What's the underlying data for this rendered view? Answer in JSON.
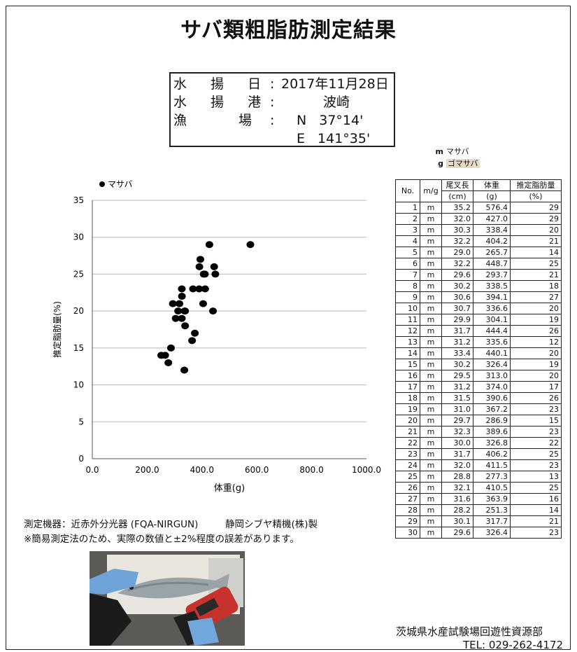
{
  "title": "サバ類粗脂肪測定結果",
  "info": {
    "rows": [
      {
        "label": "水 揚 日",
        "value": "2017年11月28日"
      },
      {
        "label": "水 揚 港",
        "value": "波崎"
      },
      {
        "label": "漁 場",
        "value": "N 37°14'"
      },
      {
        "label": "",
        "value": "E 141°35'"
      }
    ],
    "colon": ":"
  },
  "species_legend": [
    {
      "code": "m",
      "name": "マサバ"
    },
    {
      "code": "g",
      "name": "ゴマサバ"
    }
  ],
  "table": {
    "headers": [
      "No.",
      "m/g",
      "尾叉長",
      "体重",
      "推定脂肪量"
    ],
    "units": [
      "(cm)",
      "(g)",
      "(%)"
    ],
    "rows": [
      [
        "1",
        "m",
        "35.2",
        "576.4",
        "29"
      ],
      [
        "2",
        "m",
        "32.0",
        "427.0",
        "29"
      ],
      [
        "3",
        "m",
        "30.3",
        "338.4",
        "20"
      ],
      [
        "4",
        "m",
        "32.2",
        "404.2",
        "21"
      ],
      [
        "5",
        "m",
        "29.0",
        "265.7",
        "14"
      ],
      [
        "6",
        "m",
        "32.2",
        "448.7",
        "25"
      ],
      [
        "7",
        "m",
        "29.6",
        "293.7",
        "21"
      ],
      [
        "8",
        "m",
        "30.2",
        "338.5",
        "18"
      ],
      [
        "9",
        "m",
        "30.6",
        "394.1",
        "27"
      ],
      [
        "10",
        "m",
        "30.7",
        "336.6",
        "20"
      ],
      [
        "11",
        "m",
        "29.9",
        "304.1",
        "19"
      ],
      [
        "12",
        "m",
        "31.7",
        "444.4",
        "26"
      ],
      [
        "13",
        "m",
        "31.2",
        "335.6",
        "12"
      ],
      [
        "14",
        "m",
        "33.4",
        "440.1",
        "20"
      ],
      [
        "15",
        "m",
        "30.2",
        "326.4",
        "19"
      ],
      [
        "16",
        "m",
        "29.5",
        "313.0",
        "20"
      ],
      [
        "17",
        "m",
        "31.2",
        "374.0",
        "17"
      ],
      [
        "18",
        "m",
        "31.5",
        "390.6",
        "26"
      ],
      [
        "19",
        "m",
        "31.0",
        "367.2",
        "23"
      ],
      [
        "20",
        "m",
        "29.7",
        "286.9",
        "15"
      ],
      [
        "21",
        "m",
        "32.3",
        "389.6",
        "23"
      ],
      [
        "22",
        "m",
        "30.0",
        "326.8",
        "22"
      ],
      [
        "23",
        "m",
        "31.7",
        "406.2",
        "25"
      ],
      [
        "24",
        "m",
        "32.0",
        "411.5",
        "23"
      ],
      [
        "25",
        "m",
        "28.8",
        "277.3",
        "13"
      ],
      [
        "26",
        "m",
        "32.1",
        "410.5",
        "25"
      ],
      [
        "27",
        "m",
        "31.6",
        "363.9",
        "16"
      ],
      [
        "28",
        "m",
        "28.2",
        "251.3",
        "14"
      ],
      [
        "29",
        "m",
        "30.1",
        "317.7",
        "21"
      ],
      [
        "30",
        "m",
        "29.6",
        "326.4",
        "23"
      ]
    ]
  },
  "chart_data": {
    "type": "scatter",
    "series": [
      {
        "name": "マサバ",
        "points": [
          [
            576.4,
            29
          ],
          [
            427.0,
            29
          ],
          [
            338.4,
            20
          ],
          [
            404.2,
            21
          ],
          [
            265.7,
            14
          ],
          [
            448.7,
            25
          ],
          [
            293.7,
            21
          ],
          [
            338.5,
            18
          ],
          [
            394.1,
            27
          ],
          [
            336.6,
            20
          ],
          [
            304.1,
            19
          ],
          [
            444.4,
            26
          ],
          [
            335.6,
            12
          ],
          [
            440.1,
            20
          ],
          [
            326.4,
            19
          ],
          [
            313.0,
            20
          ],
          [
            374.0,
            17
          ],
          [
            390.6,
            26
          ],
          [
            367.2,
            23
          ],
          [
            286.9,
            15
          ],
          [
            389.6,
            23
          ],
          [
            326.8,
            22
          ],
          [
            406.2,
            25
          ],
          [
            411.5,
            23
          ],
          [
            277.3,
            13
          ],
          [
            410.5,
            25
          ],
          [
            363.9,
            16
          ],
          [
            251.3,
            14
          ],
          [
            317.7,
            21
          ],
          [
            326.4,
            23
          ]
        ]
      }
    ],
    "xlabel": "体重(g)",
    "ylabel": "推定脂肪量(%)",
    "xlim": [
      0,
      1000
    ],
    "ylim": [
      0,
      35
    ],
    "xticks": [
      "0.0",
      "200.0",
      "400.0",
      "600.0",
      "800.0",
      "1000.0"
    ],
    "yticks": [
      "0",
      "5",
      "10",
      "15",
      "20",
      "25",
      "30",
      "35"
    ],
    "legend": "top-left",
    "grid": "horizontal",
    "point_color": "#000000"
  },
  "notes": {
    "instrument_label": "測定機器：近赤外分光器 (FQA-NIRGUN)",
    "maker": "静岡シブヤ精機(株)製",
    "disclaimer": "※簡易測定法のため、実際の数値と±2%程度の誤差があります。"
  },
  "footer": {
    "org": "茨城県水産試験場回遊性資源部",
    "tel": "TEL: 029-262-4172"
  }
}
